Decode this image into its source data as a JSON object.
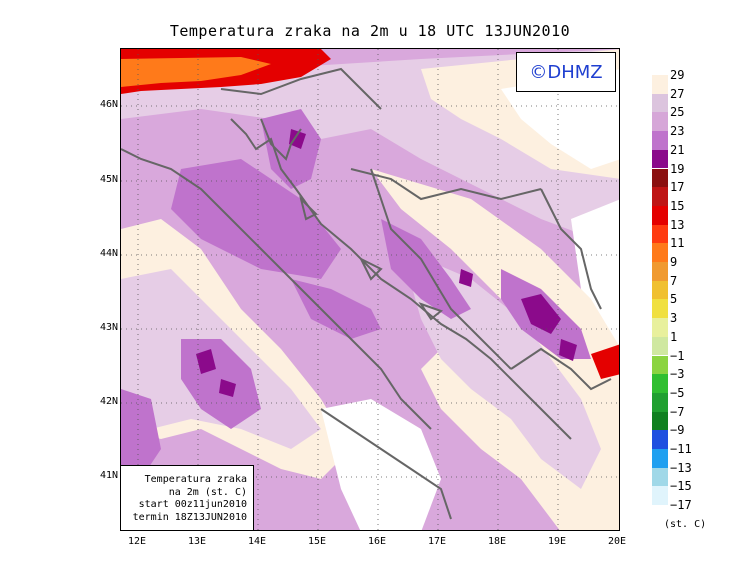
{
  "title": "Temperatura zraka na 2m u 18 UTC 13JUN2010",
  "logo": "©DHMZ",
  "info": {
    "line1": "Temperatura zraka",
    "line2": "na 2m (st. C)",
    "line3": "start 00z11jun2010",
    "line4": "termin 18Z13JUN2010"
  },
  "axes": {
    "lat_labels": [
      "46N",
      "45N",
      "44N",
      "43N",
      "42N",
      "41N"
    ],
    "lon_labels": [
      "12E",
      "13E",
      "14E",
      "15E",
      "16E",
      "17E",
      "18E",
      "19E",
      "20E"
    ]
  },
  "legend": {
    "units": "(st. C)",
    "labels": [
      "29",
      "27",
      "25",
      "23",
      "21",
      "19",
      "17",
      "15",
      "13",
      "11",
      "9",
      "7",
      "5",
      "3",
      "1",
      "−1",
      "−3",
      "−5",
      "−7",
      "−9",
      "−11",
      "−13",
      "−15",
      "−17"
    ],
    "colors": [
      "#fdf0e0",
      "#dcc4de",
      "#d6a6d8",
      "#bf73cc",
      "#8b0a8b",
      "#8b1010",
      "#bf1515",
      "#e40000",
      "#ff3b10",
      "#ff7a1a",
      "#f09a30",
      "#f0c030",
      "#f0e040",
      "#e8f09c",
      "#cfe8a0",
      "#8bd440",
      "#30bf30",
      "#20a030",
      "#108020",
      "#2050e0",
      "#20a0f0",
      "#a0d8e8",
      "#e0f4fc"
    ]
  },
  "map": {
    "colors": {
      "sea": "#d9a8dc",
      "warm_light": "#fdf0e0",
      "mild": "#e6cde6",
      "warm_purple": "#bf73cc",
      "hot_purple": "#8b0a8b",
      "red": "#e40000",
      "orange": "#ff7a1a",
      "white": "#ffffff"
    }
  }
}
